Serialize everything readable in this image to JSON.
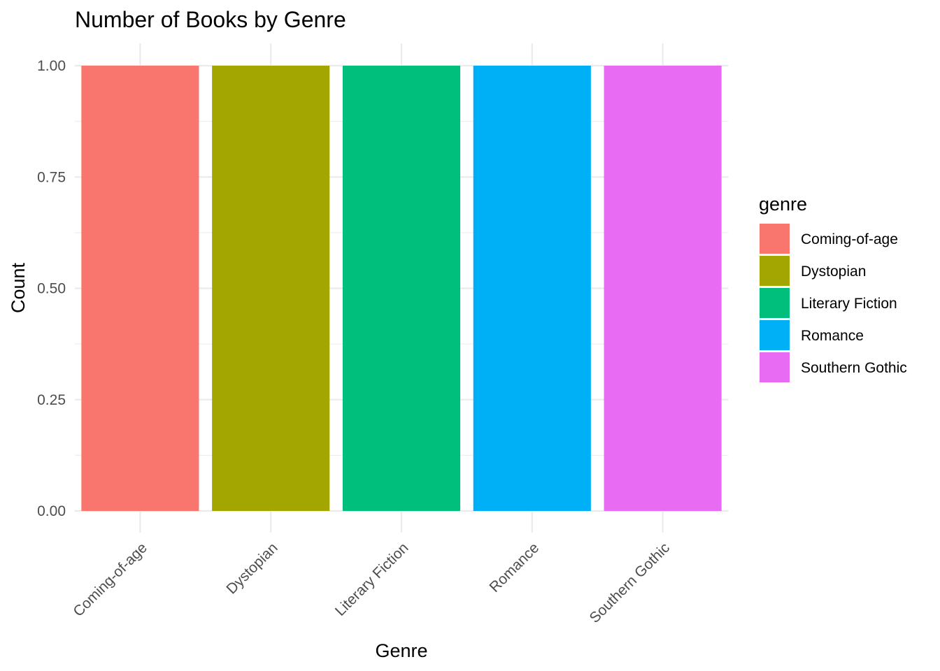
{
  "chart_data": {
    "type": "bar",
    "title": "Number of Books by Genre",
    "xlabel": "Genre",
    "ylabel": "Count",
    "categories": [
      "Coming-of-age",
      "Dystopian",
      "Literary Fiction",
      "Romance",
      "Southern Gothic"
    ],
    "values": [
      1,
      1,
      1,
      1,
      1
    ],
    "colors": [
      "#F8766D",
      "#A3A500",
      "#00BF7D",
      "#00B0F6",
      "#E76BF3"
    ],
    "ylim": [
      0,
      1
    ],
    "y_ticks": [
      0,
      0.25,
      0.5,
      0.75,
      1
    ],
    "y_tick_labels": [
      "0.00",
      "0.25",
      "0.50",
      "0.75",
      "1.00"
    ],
    "grid": true,
    "legend": {
      "title": "genre",
      "placement": "right",
      "entries": [
        "Coming-of-age",
        "Dystopian",
        "Literary Fiction",
        "Romance",
        "Southern Gothic"
      ]
    }
  }
}
